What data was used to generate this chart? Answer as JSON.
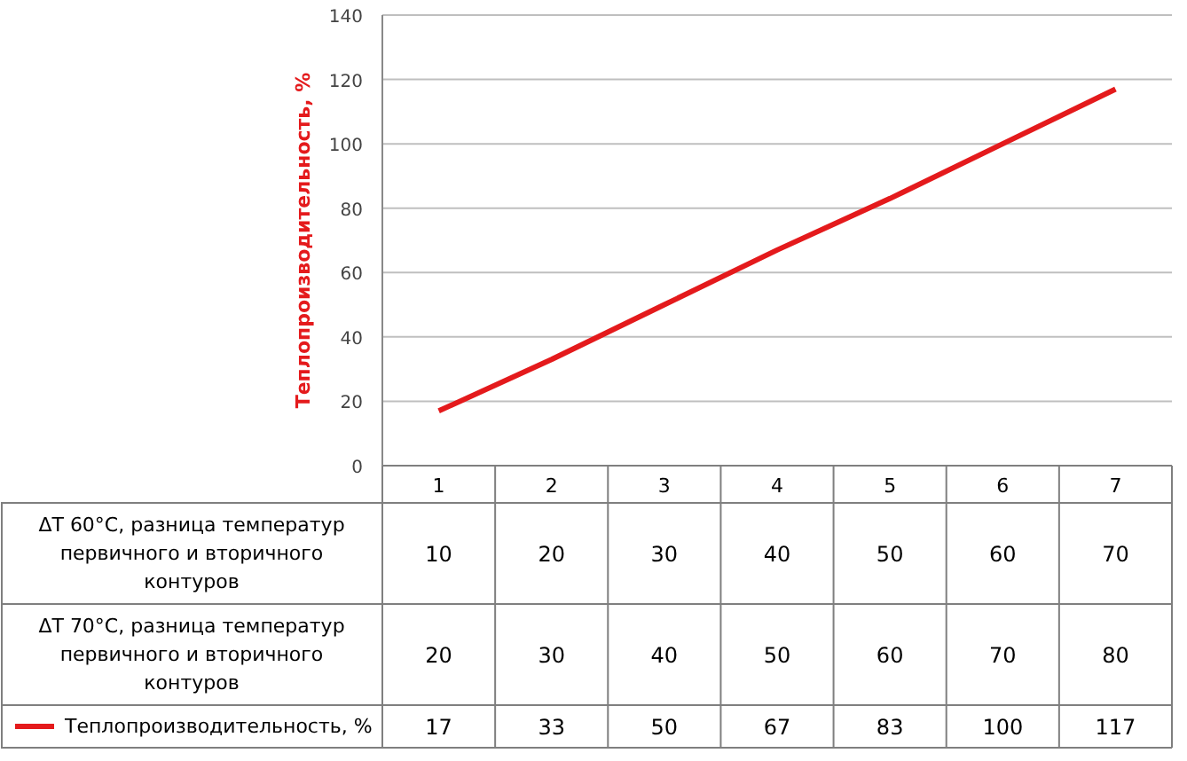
{
  "chart_data": {
    "type": "line",
    "ylabel": "Теплопроизводительность, %",
    "categories": [
      "1",
      "2",
      "3",
      "4",
      "5",
      "6",
      "7"
    ],
    "series": [
      {
        "name": "Теплопроизводительность, %",
        "color": "#e41a1c",
        "values": [
          17,
          33,
          50,
          67,
          83,
          100,
          117
        ]
      }
    ],
    "ylim": [
      0,
      140
    ],
    "yticks": [
      0,
      20,
      40,
      60,
      80,
      100,
      120,
      140
    ],
    "grid": "y",
    "legend": "bottom",
    "data_labels": true,
    "marker": "none",
    "line_style": "solid",
    "annotations": [
      "ΔT 60°C, разница температур первичного и вторичного контуров",
      "10",
      "20",
      "30",
      "40",
      "50",
      "60",
      "70",
      "ΔT 70°C, разница температур первичного и вторичного контуров",
      "20",
      "30",
      "40",
      "50",
      "60",
      "70",
      "80"
    ]
  }
}
